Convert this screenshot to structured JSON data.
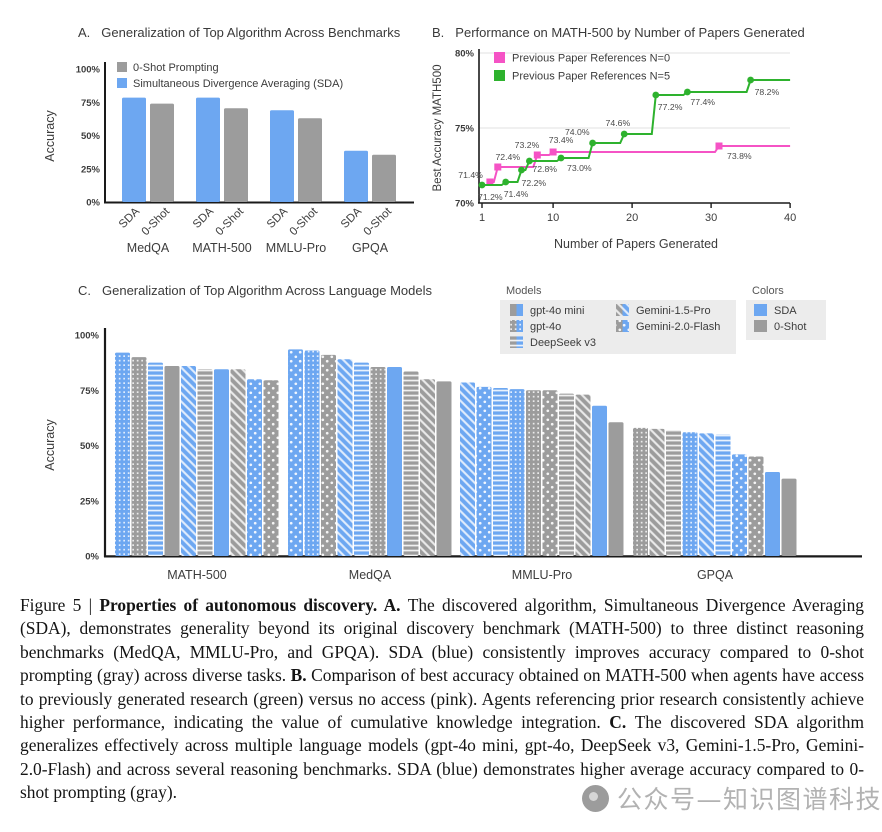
{
  "palette": {
    "blue": "#6da7f1",
    "gray": "#9c9c9c",
    "pink": "#f553c5",
    "green": "#2eb22e",
    "axis": "#1a1a1a",
    "grid": "#e2e2e2",
    "legend_box_bg": "#ececec",
    "text": "#3c3c3c"
  },
  "chart_data": [
    {
      "id": "A",
      "type": "bar",
      "panel_label": "A.",
      "title": "Generalization of Top Algorithm Across Benchmarks",
      "ylabel": "Accuracy",
      "ylim": [
        0,
        100
      ],
      "yticks": [
        0,
        25,
        50,
        75,
        100
      ],
      "ytick_labels": [
        "0%",
        "25%",
        "50%",
        "75%",
        "100%"
      ],
      "grid": false,
      "legend_position": "top-left-inside",
      "legend": [
        {
          "label": "0-Shot Prompting",
          "color": "#9c9c9c"
        },
        {
          "label": "Simultaneous Divergence Averaging (SDA)",
          "color": "#6da7f1"
        }
      ],
      "categories": [
        "MedQA",
        "MATH-500",
        "MMLU-Pro",
        "GPQA"
      ],
      "bar_tick_labels": [
        "SDA",
        "0-Shot"
      ],
      "series": [
        {
          "name": "SDA",
          "color": "#6da7f1",
          "values": [
            78.5,
            78.5,
            69,
            38.5
          ]
        },
        {
          "name": "0-Shot",
          "color": "#9c9c9c",
          "values": [
            74,
            70.5,
            63,
            35.5
          ]
        }
      ]
    },
    {
      "id": "B",
      "type": "line",
      "panel_label": "B.",
      "title": "Performance on MATH-500 by Number of Papers Generated",
      "xlabel": "Number of Papers Generated",
      "ylabel": "Best Accuracy MATH500",
      "xlim": [
        1,
        40
      ],
      "xticks": [
        1,
        10,
        20,
        30,
        40
      ],
      "ylim": [
        70,
        80
      ],
      "yticks": [
        70,
        75,
        80
      ],
      "ytick_labels": [
        "70%",
        "75%",
        "80%"
      ],
      "grid": true,
      "legend_position": "top-left-inside",
      "series": [
        {
          "name": "Previous Paper References N=0",
          "color": "#f553c5",
          "marker": "square",
          "end_x": 40,
          "points": [
            {
              "x": 2,
              "y": 71.4,
              "label": "71.4%",
              "anchor": "end",
              "dx": -7,
              "dy": -4
            },
            {
              "x": 3,
              "y": 72.4,
              "label": "72.4%",
              "anchor": "middle",
              "dx": 10,
              "dy": -7
            },
            {
              "x": 8,
              "y": 73.2,
              "label": "73.2%",
              "anchor": "end",
              "dx": 2,
              "dy": -7
            },
            {
              "x": 10,
              "y": 73.4,
              "label": "73.4%",
              "anchor": "middle",
              "dx": 8,
              "dy": -9
            },
            {
              "x": 31,
              "y": 73.8,
              "label": "73.8%",
              "anchor": "start",
              "dx": 8,
              "dy": 13
            }
          ]
        },
        {
          "name": "Previous Paper References N=5",
          "color": "#2eb22e",
          "marker": "circle",
          "end_x": 40,
          "points": [
            {
              "x": 1,
              "y": 71.2,
              "label": "71.2%",
              "anchor": "start",
              "dx": -4,
              "dy": 15
            },
            {
              "x": 4,
              "y": 71.4,
              "label": "71.4%",
              "anchor": "start",
              "dx": -2,
              "dy": 15
            },
            {
              "x": 6,
              "y": 72.2,
              "label": "72.2%",
              "anchor": "start",
              "dx": 0,
              "dy": 16
            },
            {
              "x": 7,
              "y": 72.8,
              "label": "72.8%",
              "anchor": "start",
              "dx": 3,
              "dy": 11
            },
            {
              "x": 11,
              "y": 73.0,
              "label": "73.0%",
              "anchor": "start",
              "dx": 6,
              "dy": 13
            },
            {
              "x": 15,
              "y": 74.0,
              "label": "74.0%",
              "anchor": "end",
              "dx": -3,
              "dy": -8
            },
            {
              "x": 19,
              "y": 74.6,
              "label": "74.6%",
              "anchor": "end",
              "dx": 6,
              "dy": -8
            },
            {
              "x": 23,
              "y": 77.2,
              "label": "77.2%",
              "anchor": "start",
              "dx": 2,
              "dy": 15
            },
            {
              "x": 27,
              "y": 77.4,
              "label": "77.4%",
              "anchor": "start",
              "dx": 3,
              "dy": 13
            },
            {
              "x": 35,
              "y": 78.2,
              "label": "78.2%",
              "anchor": "start",
              "dx": 4,
              "dy": 15
            }
          ]
        }
      ]
    },
    {
      "id": "C",
      "type": "bar",
      "panel_label": "C.",
      "title": "Generalization of Top Algorithm Across Language Models",
      "ylabel": "Accuracy",
      "ylim": [
        0,
        100
      ],
      "yticks": [
        0,
        25,
        50,
        75,
        100
      ],
      "ytick_labels": [
        "0%",
        "25%",
        "50%",
        "75%",
        "100%"
      ],
      "grid": false,
      "categories": [
        "MATH-500",
        "MedQA",
        "MMLU-Pro",
        "GPQA"
      ],
      "legend_models": {
        "title": "Models",
        "items": [
          {
            "label": "gpt-4o mini",
            "pattern": "solid"
          },
          {
            "label": "gpt-4o",
            "pattern": "checker"
          },
          {
            "label": "DeepSeek v3",
            "pattern": "hstripes"
          },
          {
            "label": "Gemini-1.5-Pro",
            "pattern": "diag"
          },
          {
            "label": "Gemini-2.0-Flash",
            "pattern": "dots"
          }
        ]
      },
      "legend_colors": {
        "title": "Colors",
        "items": [
          {
            "label": "SDA",
            "color": "#6da7f1"
          },
          {
            "label": "0-Shot",
            "color": "#9c9c9c"
          }
        ]
      },
      "groups": [
        {
          "category": "MATH-500",
          "bars": [
            {
              "model": "gpt-4o",
              "variant": "SDA",
              "value": 92
            },
            {
              "model": "gpt-4o",
              "variant": "0-Shot",
              "value": 90
            },
            {
              "model": "DeepSeek v3",
              "variant": "SDA",
              "value": 87.5
            },
            {
              "model": "gpt-4o mini",
              "variant": "0-Shot",
              "value": 86
            },
            {
              "model": "Gemini-1.5-Pro",
              "variant": "SDA",
              "value": 86
            },
            {
              "model": "DeepSeek v3",
              "variant": "0-Shot",
              "value": 84.5
            },
            {
              "model": "gpt-4o mini",
              "variant": "SDA",
              "value": 84.5
            },
            {
              "model": "Gemini-1.5-Pro",
              "variant": "0-Shot",
              "value": 84.5
            },
            {
              "model": "Gemini-2.0-Flash",
              "variant": "SDA",
              "value": 80
            },
            {
              "model": "Gemini-2.0-Flash",
              "variant": "0-Shot",
              "value": 79.5
            }
          ]
        },
        {
          "category": "MedQA",
          "bars": [
            {
              "model": "Gemini-2.0-Flash",
              "variant": "SDA",
              "value": 93.5
            },
            {
              "model": "gpt-4o",
              "variant": "SDA",
              "value": 93
            },
            {
              "model": "Gemini-2.0-Flash",
              "variant": "0-Shot",
              "value": 91
            },
            {
              "model": "Gemini-1.5-Pro",
              "variant": "SDA",
              "value": 89
            },
            {
              "model": "DeepSeek v3",
              "variant": "SDA",
              "value": 87.5
            },
            {
              "model": "gpt-4o",
              "variant": "0-Shot",
              "value": 85.5
            },
            {
              "model": "gpt-4o mini",
              "variant": "SDA",
              "value": 85.5
            },
            {
              "model": "DeepSeek v3",
              "variant": "0-Shot",
              "value": 83.5
            },
            {
              "model": "Gemini-1.5-Pro",
              "variant": "0-Shot",
              "value": 80
            },
            {
              "model": "gpt-4o mini",
              "variant": "0-Shot",
              "value": 79
            }
          ]
        },
        {
          "category": "MMLU-Pro",
          "bars": [
            {
              "model": "Gemini-1.5-Pro",
              "variant": "SDA",
              "value": 78.5
            },
            {
              "model": "Gemini-2.0-Flash",
              "variant": "SDA",
              "value": 76.5
            },
            {
              "model": "DeepSeek v3",
              "variant": "SDA",
              "value": 76
            },
            {
              "model": "gpt-4o",
              "variant": "SDA",
              "value": 75.5
            },
            {
              "model": "gpt-4o",
              "variant": "0-Shot",
              "value": 75
            },
            {
              "model": "Gemini-2.0-Flash",
              "variant": "0-Shot",
              "value": 75
            },
            {
              "model": "DeepSeek v3",
              "variant": "0-Shot",
              "value": 73.5
            },
            {
              "model": "Gemini-1.5-Pro",
              "variant": "0-Shot",
              "value": 73
            },
            {
              "model": "gpt-4o mini",
              "variant": "SDA",
              "value": 68
            },
            {
              "model": "gpt-4o mini",
              "variant": "0-Shot",
              "value": 60.5
            }
          ]
        },
        {
          "category": "GPQA",
          "bars": [
            {
              "model": "gpt-4o",
              "variant": "0-Shot",
              "value": 58
            },
            {
              "model": "Gemini-1.5-Pro",
              "variant": "0-Shot",
              "value": 57.5
            },
            {
              "model": "DeepSeek v3",
              "variant": "0-Shot",
              "value": 57
            },
            {
              "model": "gpt-4o",
              "variant": "SDA",
              "value": 56
            },
            {
              "model": "Gemini-1.5-Pro",
              "variant": "SDA",
              "value": 55.5
            },
            {
              "model": "DeepSeek v3",
              "variant": "SDA",
              "value": 55
            },
            {
              "model": "Gemini-2.0-Flash",
              "variant": "SDA",
              "value": 46
            },
            {
              "model": "Gemini-2.0-Flash",
              "variant": "0-Shot",
              "value": 45
            },
            {
              "model": "gpt-4o mini",
              "variant": "SDA",
              "value": 38
            },
            {
              "model": "gpt-4o mini",
              "variant": "0-Shot",
              "value": 35
            }
          ]
        }
      ]
    }
  ],
  "caption": {
    "segments": [
      {
        "text": "Figure 5 | ",
        "bold": false
      },
      {
        "text": "Properties of autonomous discovery. A. ",
        "bold": true
      },
      {
        "text": "The discovered algorithm, Simultaneous Divergence Averaging (SDA), demonstrates generality beyond its original discovery benchmark (MATH-500) to three distinct reasoning benchmarks (MedQA, MMLU-Pro, and GPQA). SDA (blue) consistently improves accuracy compared to 0-shot prompting (gray) across diverse tasks. ",
        "bold": false
      },
      {
        "text": "B. ",
        "bold": true
      },
      {
        "text": "Comparison of best accuracy obtained on MATH-500 when agents have access to previously generated research (green) versus no access (pink). Agents referencing prior research consistently achieve higher performance, indicating the value of cumulative knowledge integration. ",
        "bold": false
      },
      {
        "text": "C. ",
        "bold": true
      },
      {
        "text": "The discovered SDA algorithm generalizes effectively across multiple language models (gpt-4o mini, gpt-4o, DeepSeek v3, Gemini-1.5-Pro, Gemini-2.0-Flash) and across several reasoning benchmarks. SDA (blue) demonstrates higher average accuracy compared to 0-shot prompting (gray).",
        "bold": false
      }
    ]
  },
  "watermark": {
    "logo": "circle-logo",
    "text": "公众号—知识图谱科技"
  }
}
